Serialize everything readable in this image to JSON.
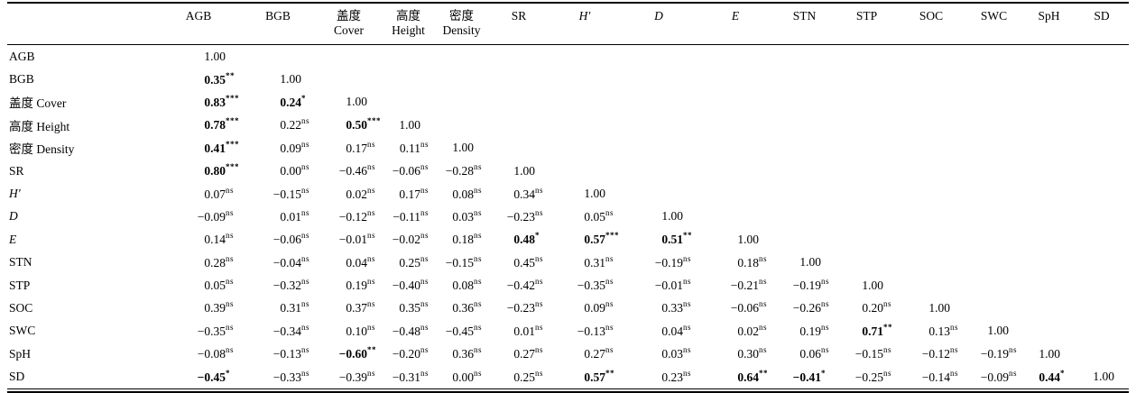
{
  "page": {
    "background_color": "#ffffff",
    "text_color": "#000000"
  },
  "chart_data": {
    "type": "table",
    "table_kind": "correlation-matrix",
    "diagonal_value": "1.00",
    "columns": [
      {
        "cn": "",
        "en": "AGB",
        "italic": false
      },
      {
        "cn": "",
        "en": "BGB",
        "italic": false
      },
      {
        "cn": "盖度",
        "en": "Cover",
        "italic": false
      },
      {
        "cn": "高度",
        "en": "Height",
        "italic": false
      },
      {
        "cn": "密度",
        "en": "Density",
        "italic": false
      },
      {
        "cn": "",
        "en": "SR",
        "italic": false
      },
      {
        "cn": "",
        "en": "H′",
        "italic": true
      },
      {
        "cn": "",
        "en": "D",
        "italic": true
      },
      {
        "cn": "",
        "en": "E",
        "italic": true
      },
      {
        "cn": "",
        "en": "STN",
        "italic": false
      },
      {
        "cn": "",
        "en": "STP",
        "italic": false
      },
      {
        "cn": "",
        "en": "SOC",
        "italic": false
      },
      {
        "cn": "",
        "en": "SWC",
        "italic": false
      },
      {
        "cn": "",
        "en": "SpH",
        "italic": false
      },
      {
        "cn": "",
        "en": "SD",
        "italic": false
      }
    ],
    "rows": [
      {
        "label": "AGB",
        "italic": false,
        "cells": [
          {
            "v": "1.00",
            "s": "",
            "b": false
          }
        ]
      },
      {
        "label": "BGB",
        "italic": false,
        "cells": [
          {
            "v": "0.35",
            "s": "**",
            "b": true
          },
          {
            "v": "1.00",
            "s": "",
            "b": false
          }
        ]
      },
      {
        "label": "盖度 Cover",
        "italic": false,
        "cells": [
          {
            "v": "0.83",
            "s": "***",
            "b": true
          },
          {
            "v": "0.24",
            "s": "*",
            "b": true
          },
          {
            "v": "1.00",
            "s": "",
            "b": false
          }
        ]
      },
      {
        "label": "高度 Height",
        "italic": false,
        "cells": [
          {
            "v": "0.78",
            "s": "***",
            "b": true
          },
          {
            "v": "0.22",
            "s": "ns",
            "b": false
          },
          {
            "v": "0.50",
            "s": "***",
            "b": true
          },
          {
            "v": "1.00",
            "s": "",
            "b": false
          }
        ]
      },
      {
        "label": "密度 Density",
        "italic": false,
        "cells": [
          {
            "v": "0.41",
            "s": "***",
            "b": true
          },
          {
            "v": "0.09",
            "s": "ns",
            "b": false
          },
          {
            "v": "0.17",
            "s": "ns",
            "b": false
          },
          {
            "v": "0.11",
            "s": "ns",
            "b": false
          },
          {
            "v": "1.00",
            "s": "",
            "b": false
          }
        ]
      },
      {
        "label": "SR",
        "italic": false,
        "cells": [
          {
            "v": "0.80",
            "s": "***",
            "b": true
          },
          {
            "v": "0.00",
            "s": "ns",
            "b": false
          },
          {
            "v": "−0.46",
            "s": "ns",
            "b": false
          },
          {
            "v": "−0.06",
            "s": "ns",
            "b": false
          },
          {
            "v": "−0.28",
            "s": "ns",
            "b": false
          },
          {
            "v": "1.00",
            "s": "",
            "b": false
          }
        ]
      },
      {
        "label": "H′",
        "italic": true,
        "cells": [
          {
            "v": "0.07",
            "s": "ns",
            "b": false
          },
          {
            "v": "−0.15",
            "s": "ns",
            "b": false
          },
          {
            "v": "0.02",
            "s": "ns",
            "b": false
          },
          {
            "v": "0.17",
            "s": "ns",
            "b": false
          },
          {
            "v": "0.08",
            "s": "ns",
            "b": false
          },
          {
            "v": "0.34",
            "s": "ns",
            "b": false
          },
          {
            "v": "1.00",
            "s": "",
            "b": false
          }
        ]
      },
      {
        "label": "D",
        "italic": true,
        "cells": [
          {
            "v": "−0.09",
            "s": "ns",
            "b": false
          },
          {
            "v": "0.01",
            "s": "ns",
            "b": false
          },
          {
            "v": "−0.12",
            "s": "ns",
            "b": false
          },
          {
            "v": "−0.11",
            "s": "ns",
            "b": false
          },
          {
            "v": "0.03",
            "s": "ns",
            "b": false
          },
          {
            "v": "−0.23",
            "s": "ns",
            "b": false
          },
          {
            "v": "0.05",
            "s": "ns",
            "b": false
          },
          {
            "v": "1.00",
            "s": "",
            "b": false
          }
        ]
      },
      {
        "label": "E",
        "italic": true,
        "cells": [
          {
            "v": "0.14",
            "s": "ns",
            "b": false
          },
          {
            "v": "−0.06",
            "s": "ns",
            "b": false
          },
          {
            "v": "−0.01",
            "s": "ns",
            "b": false
          },
          {
            "v": "−0.02",
            "s": "ns",
            "b": false
          },
          {
            "v": "0.18",
            "s": "ns",
            "b": false
          },
          {
            "v": "0.48",
            "s": "*",
            "b": true
          },
          {
            "v": "0.57",
            "s": "***",
            "b": true
          },
          {
            "v": "0.51",
            "s": "**",
            "b": true
          },
          {
            "v": "1.00",
            "s": "",
            "b": false
          }
        ]
      },
      {
        "label": "STN",
        "italic": false,
        "cells": [
          {
            "v": "0.28",
            "s": "ns",
            "b": false
          },
          {
            "v": "−0.04",
            "s": "ns",
            "b": false
          },
          {
            "v": "0.04",
            "s": "ns",
            "b": false
          },
          {
            "v": "0.25",
            "s": "ns",
            "b": false
          },
          {
            "v": "−0.15",
            "s": "ns",
            "b": false
          },
          {
            "v": "0.45",
            "s": "ns",
            "b": false
          },
          {
            "v": "0.31",
            "s": "ns",
            "b": false
          },
          {
            "v": "−0.19",
            "s": "ns",
            "b": false
          },
          {
            "v": "0.18",
            "s": "ns",
            "b": false
          },
          {
            "v": "1.00",
            "s": "",
            "b": false
          }
        ]
      },
      {
        "label": "STP",
        "italic": false,
        "cells": [
          {
            "v": "0.05",
            "s": "ns",
            "b": false
          },
          {
            "v": "−0.32",
            "s": "ns",
            "b": false
          },
          {
            "v": "0.19",
            "s": "ns",
            "b": false
          },
          {
            "v": "−0.40",
            "s": "ns",
            "b": false
          },
          {
            "v": "0.08",
            "s": "ns",
            "b": false
          },
          {
            "v": "−0.42",
            "s": "ns",
            "b": false
          },
          {
            "v": "−0.35",
            "s": "ns",
            "b": false
          },
          {
            "v": "−0.01",
            "s": "ns",
            "b": false
          },
          {
            "v": "−0.21",
            "s": "ns",
            "b": false
          },
          {
            "v": "−0.19",
            "s": "ns",
            "b": false
          },
          {
            "v": "1.00",
            "s": "",
            "b": false
          }
        ]
      },
      {
        "label": "SOC",
        "italic": false,
        "cells": [
          {
            "v": "0.39",
            "s": "ns",
            "b": false
          },
          {
            "v": "0.31",
            "s": "ns",
            "b": false
          },
          {
            "v": "0.37",
            "s": "ns",
            "b": false
          },
          {
            "v": "0.35",
            "s": "ns",
            "b": false
          },
          {
            "v": "0.36",
            "s": "ns",
            "b": false
          },
          {
            "v": "−0.23",
            "s": "ns",
            "b": false
          },
          {
            "v": "0.09",
            "s": "ns",
            "b": false
          },
          {
            "v": "0.33",
            "s": "ns",
            "b": false
          },
          {
            "v": "−0.06",
            "s": "ns",
            "b": false
          },
          {
            "v": "−0.26",
            "s": "ns",
            "b": false
          },
          {
            "v": "0.20",
            "s": "ns",
            "b": false
          },
          {
            "v": "1.00",
            "s": "",
            "b": false
          }
        ]
      },
      {
        "label": "SWC",
        "italic": false,
        "cells": [
          {
            "v": "−0.35",
            "s": "ns",
            "b": false
          },
          {
            "v": "−0.34",
            "s": "ns",
            "b": false
          },
          {
            "v": "0.10",
            "s": "ns",
            "b": false
          },
          {
            "v": "−0.48",
            "s": "ns",
            "b": false
          },
          {
            "v": "−0.45",
            "s": "ns",
            "b": false
          },
          {
            "v": "0.01",
            "s": "ns",
            "b": false
          },
          {
            "v": "−0.13",
            "s": "ns",
            "b": false
          },
          {
            "v": "0.04",
            "s": "ns",
            "b": false
          },
          {
            "v": "0.02",
            "s": "ns",
            "b": false
          },
          {
            "v": "0.19",
            "s": "ns",
            "b": false
          },
          {
            "v": "0.71",
            "s": "**",
            "b": true
          },
          {
            "v": "0.13",
            "s": "ns",
            "b": false
          },
          {
            "v": "1.00",
            "s": "",
            "b": false
          }
        ]
      },
      {
        "label": "SpH",
        "italic": false,
        "cells": [
          {
            "v": "−0.08",
            "s": "ns",
            "b": false
          },
          {
            "v": "−0.13",
            "s": "ns",
            "b": false
          },
          {
            "v": "−0.60",
            "s": "**",
            "b": true
          },
          {
            "v": "−0.20",
            "s": "ns",
            "b": false
          },
          {
            "v": "0.36",
            "s": "ns",
            "b": false
          },
          {
            "v": "0.27",
            "s": "ns",
            "b": false
          },
          {
            "v": "0.27",
            "s": "ns",
            "b": false
          },
          {
            "v": "0.03",
            "s": "ns",
            "b": false
          },
          {
            "v": "0.30",
            "s": "ns",
            "b": false
          },
          {
            "v": "0.06",
            "s": "ns",
            "b": false
          },
          {
            "v": "−0.15",
            "s": "ns",
            "b": false
          },
          {
            "v": "−0.12",
            "s": "ns",
            "b": false
          },
          {
            "v": "−0.19",
            "s": "ns",
            "b": false
          },
          {
            "v": "1.00",
            "s": "",
            "b": false
          }
        ]
      },
      {
        "label": "SD",
        "italic": false,
        "cells": [
          {
            "v": "−0.45",
            "s": "*",
            "b": true
          },
          {
            "v": "−0.33",
            "s": "ns",
            "b": false
          },
          {
            "v": "−0.39",
            "s": "ns",
            "b": false
          },
          {
            "v": "−0.31",
            "s": "ns",
            "b": false
          },
          {
            "v": "0.00",
            "s": "ns",
            "b": false
          },
          {
            "v": "0.25",
            "s": "ns",
            "b": false
          },
          {
            "v": "0.57",
            "s": "**",
            "b": true
          },
          {
            "v": "0.23",
            "s": "ns",
            "b": false
          },
          {
            "v": "0.64",
            "s": "**",
            "b": true
          },
          {
            "v": "−0.41",
            "s": "*",
            "b": true
          },
          {
            "v": "−0.25",
            "s": "ns",
            "b": false
          },
          {
            "v": "−0.14",
            "s": "ns",
            "b": false
          },
          {
            "v": "−0.09",
            "s": "ns",
            "b": false
          },
          {
            "v": "0.44",
            "s": "*",
            "b": true
          },
          {
            "v": "1.00",
            "s": "",
            "b": false
          }
        ]
      }
    ]
  }
}
